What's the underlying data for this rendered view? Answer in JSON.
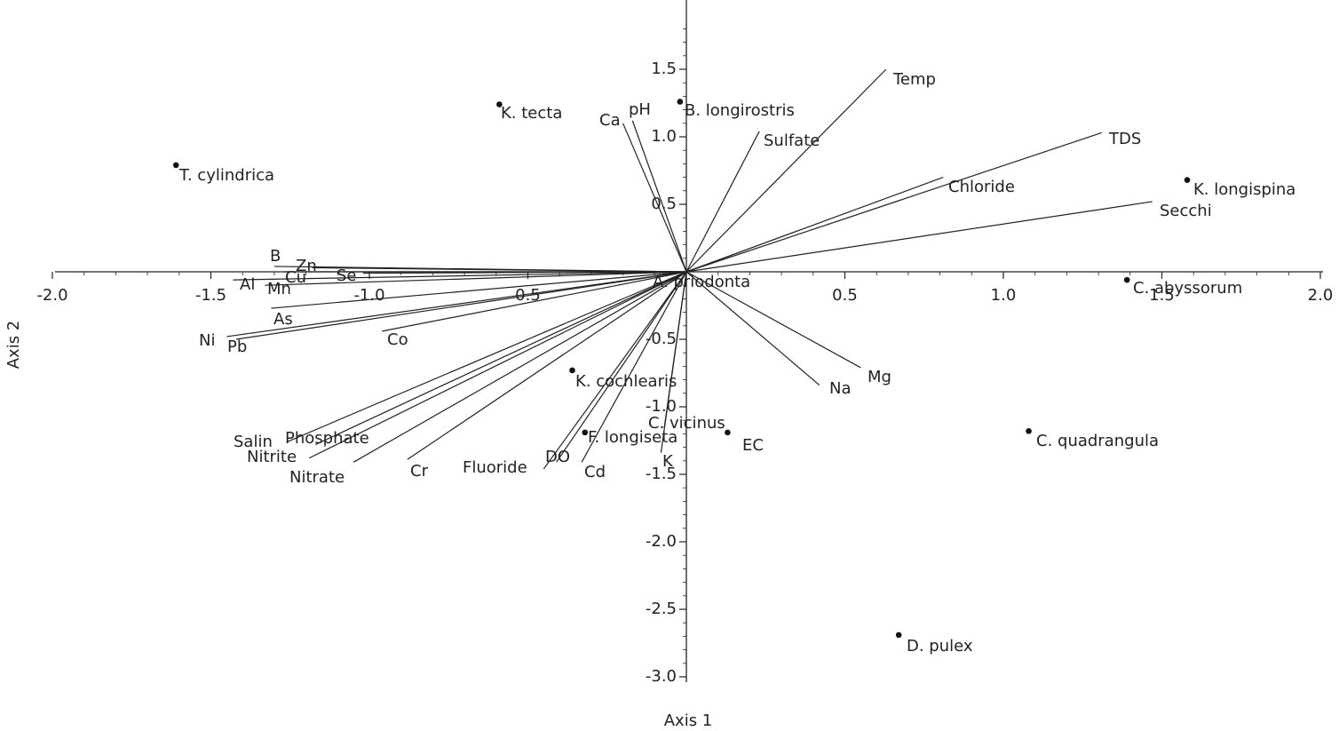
{
  "chart_data": {
    "type": "scatter",
    "subtype": "ordination-biplot",
    "title": "",
    "xlabel": "Axis 1",
    "ylabel": "Axis 2",
    "xlim": [
      -2.0,
      2.0
    ],
    "ylim": [
      -3.0,
      2.0
    ],
    "x_ticks": [
      "-2.0",
      "-1.5",
      "-1.0",
      "0.5",
      "0.5",
      "1.0",
      "1.5",
      "2.0"
    ],
    "y_ticks": [
      "1.5",
      "1.0",
      "0.5",
      "-0.5",
      "-1.0",
      "-1.5",
      "-2.0",
      "-2.5",
      "-3.0"
    ],
    "grid": false,
    "legend": "none",
    "colors": {
      "line": "#222222",
      "point": "#111111",
      "text": "#222222"
    },
    "species": [
      {
        "name": "T. cylindrica",
        "x": -1.61,
        "y": 0.79
      },
      {
        "name": "K. tecta",
        "x": -0.59,
        "y": 1.24
      },
      {
        "name": "B. longirostris",
        "x": -0.02,
        "y": 1.26
      },
      {
        "name": "K. longispina",
        "x": 1.58,
        "y": 0.68
      },
      {
        "name": "C. abyssorum",
        "x": 1.39,
        "y": -0.06
      },
      {
        "name": "K. cochlearis",
        "x": -0.36,
        "y": -0.73
      },
      {
        "name": "F. longiseta",
        "x": -0.32,
        "y": -1.19
      },
      {
        "name": "EC",
        "x": 0.13,
        "y": -1.19
      },
      {
        "name": "C. quadrangula",
        "x": 1.08,
        "y": -1.18
      },
      {
        "name": "D. pulex",
        "x": 0.67,
        "y": -2.69
      }
    ],
    "vectors": [
      {
        "name": "Temp",
        "x": 0.63,
        "y": 1.5
      },
      {
        "name": "TDS",
        "x": 1.31,
        "y": 1.03
      },
      {
        "name": "Chloride",
        "x": 0.81,
        "y": 0.7
      },
      {
        "name": "Secchi",
        "x": 1.47,
        "y": 0.52
      },
      {
        "name": "Sulfate",
        "x": 0.23,
        "y": 1.04
      },
      {
        "name": "pH",
        "x": -0.17,
        "y": 1.12
      },
      {
        "name": "Ca",
        "x": -0.2,
        "y": 1.1
      },
      {
        "name": "B",
        "x": -1.3,
        "y": 0.04
      },
      {
        "name": "Zn",
        "x": -1.18,
        "y": 0.03
      },
      {
        "name": "Cu",
        "x": -1.27,
        "y": 0.0
      },
      {
        "name": "Se",
        "x": -1.02,
        "y": -0.01
      },
      {
        "name": "Al",
        "x": -1.43,
        "y": -0.06
      },
      {
        "name": "Mn",
        "x": -1.33,
        "y": -0.1
      },
      {
        "name": "As",
        "x": -1.31,
        "y": -0.27
      },
      {
        "name": "Ni",
        "x": -1.45,
        "y": -0.48
      },
      {
        "name": "Pb",
        "x": -1.42,
        "y": -0.5
      },
      {
        "name": "Co",
        "x": -0.96,
        "y": -0.44
      },
      {
        "name": "Salin",
        "x": -1.26,
        "y": -1.26
      },
      {
        "name": "Phosphate",
        "x": -1.17,
        "y": -1.28
      },
      {
        "name": "Nitrite",
        "x": -1.19,
        "y": -1.38
      },
      {
        "name": "Nitrate",
        "x": -1.05,
        "y": -1.41
      },
      {
        "name": "Cr",
        "x": -0.88,
        "y": -1.39
      },
      {
        "name": "Fluoride",
        "x": -0.45,
        "y": -1.46
      },
      {
        "name": "DO",
        "x": -0.41,
        "y": -1.41
      },
      {
        "name": "Cd",
        "x": -0.33,
        "y": -1.41
      },
      {
        "name": "C. vicinus",
        "x": -0.07,
        "y": -1.16
      },
      {
        "name": "K",
        "x": -0.08,
        "y": -1.34
      },
      {
        "name": "Na",
        "x": 0.42,
        "y": -0.84
      },
      {
        "name": "Mg",
        "x": 0.55,
        "y": -0.71
      },
      {
        "name": "A. priodonta",
        "x": -0.05,
        "y": -0.08
      }
    ]
  }
}
